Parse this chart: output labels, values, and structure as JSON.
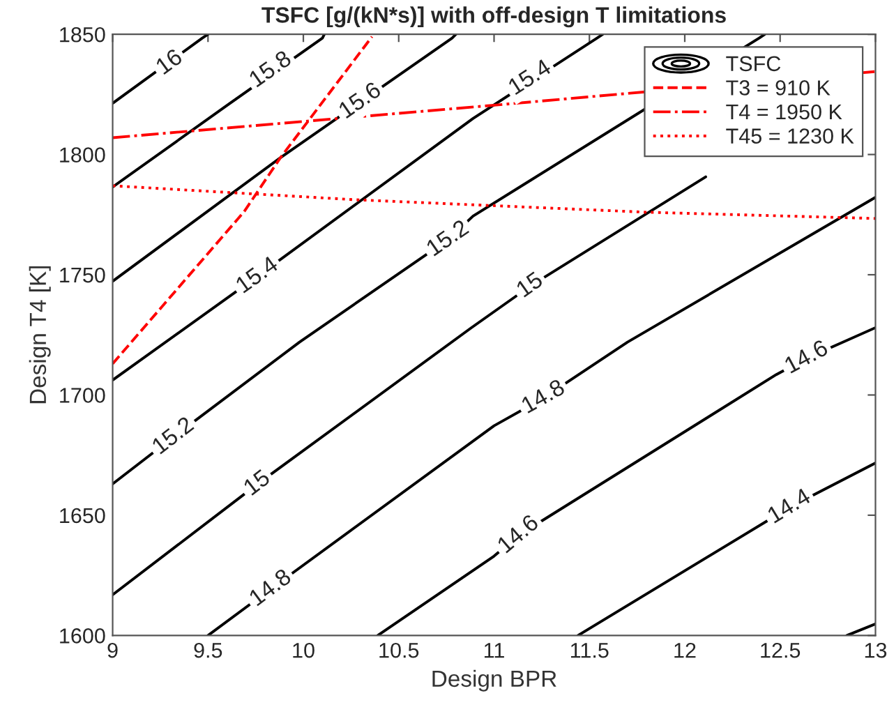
{
  "chart_data": {
    "type": "line",
    "title": "TSFC [g/(kN*s)] with off-design T limitations",
    "xlabel": "Design BPR",
    "ylabel": "Design T4 [K]",
    "xlim": [
      9,
      13
    ],
    "ylim": [
      1600,
      1850
    ],
    "xticks": [
      9,
      9.5,
      10,
      10.5,
      11,
      11.5,
      12,
      12.5,
      13
    ],
    "yticks": [
      1600,
      1650,
      1700,
      1750,
      1800,
      1850
    ],
    "grid": false,
    "legend": "top right",
    "marker": "none",
    "series": [
      {
        "name": "TSFC",
        "color": "#000000",
        "line_style": "solid",
        "x": [
          9,
          9.47,
          9.5
        ],
        "values": [
          1821.3,
          1848.4,
          1850
        ]
      },
      {
        "color": "#000000",
        "line_style": "solid",
        "x": [
          9,
          9.61,
          10.1,
          10.11
        ],
        "values": [
          1786.5,
          1821,
          1848.4,
          1850
        ]
      },
      {
        "color": "#000000",
        "line_style": "solid",
        "x": [
          9,
          9.88,
          10.78,
          10.8
        ],
        "values": [
          1747.3,
          1798.7,
          1848.4,
          1850
        ]
      },
      {
        "color": "#000000",
        "line_style": "solid",
        "x": [
          9,
          9.76,
          10.89,
          11.54,
          11.57
        ],
        "values": [
          1706.2,
          1749.4,
          1815,
          1848.4,
          1850
        ]
      },
      {
        "color": "#000000",
        "line_style": "solid",
        "x": [
          9,
          9.32,
          9.98,
          10.76,
          10.89,
          12.39,
          12.42
        ],
        "values": [
          1663,
          1682.6,
          1722,
          1764.7,
          1774.4,
          1848.4,
          1850
        ]
      },
      {
        "color": "#000000",
        "line_style": "solid",
        "x": [
          9,
          9.76,
          10.88,
          11.19,
          12.11
        ],
        "values": [
          1616.9,
          1663,
          1727.9,
          1745.3,
          1790.7
        ]
      },
      {
        "color": "#000000",
        "line_style": "solid",
        "x": [
          9.5,
          9.83,
          11.0,
          11.26,
          11.7,
          13
        ],
        "values": [
          1600,
          1619.4,
          1687.2,
          1698.8,
          1722,
          1782.2
        ]
      },
      {
        "color": "#000000",
        "line_style": "solid",
        "x": [
          10.39,
          11.0,
          11.13,
          12.48,
          12.64,
          13
        ],
        "values": [
          1600,
          1633,
          1641.7,
          1708.5,
          1715.3,
          1728
        ]
      },
      {
        "color": "#000000",
        "line_style": "solid",
        "x": [
          11.44,
          12.55,
          13
        ],
        "values": [
          1600,
          1653.3,
          1671.7
        ]
      },
      {
        "color": "#000000",
        "line_style": "solid",
        "x": [
          12.85,
          13
        ],
        "values": [
          1600,
          1604.8
        ]
      },
      {
        "name": "T3 = 910 K",
        "color": "#ff0000",
        "line_style": "dashed",
        "x": [
          9,
          9.69,
          9.88,
          10.36
        ],
        "values": [
          1713,
          1776.3,
          1798.7,
          1849
        ]
      },
      {
        "name": "T4 = 1950 K",
        "color": "#ff0000",
        "line_style": "dashdot",
        "x": [
          9,
          11.0,
          13
        ],
        "values": [
          1807,
          1820.5,
          1834.5
        ]
      },
      {
        "name": "T45 = 1230 K",
        "color": "#ff0000",
        "line_style": "dotted",
        "x": [
          9,
          10.27,
          11.8,
          13
        ],
        "values": [
          1787,
          1781.2,
          1776,
          1773.4
        ]
      }
    ],
    "annotations": [
      {
        "text": "16",
        "x": 9.3,
        "y": 1838
      },
      {
        "text": "15.8",
        "x": 9.83,
        "y": 1835
      },
      {
        "text": "15.6",
        "x": 10.3,
        "y": 1822
      },
      {
        "text": "15.4",
        "x": 9.76,
        "y": 1749.4
      },
      {
        "text": "15.4",
        "x": 11.19,
        "y": 1831.6
      },
      {
        "text": "15.2",
        "x": 9.32,
        "y": 1682.6
      },
      {
        "text": "15.2",
        "x": 10.76,
        "y": 1764.7
      },
      {
        "text": "15",
        "x": 9.76,
        "y": 1663
      },
      {
        "text": "15",
        "x": 11.19,
        "y": 1745.3
      },
      {
        "text": "14.8",
        "x": 9.83,
        "y": 1619.4
      },
      {
        "text": "14.8",
        "x": 11.26,
        "y": 1698.8
      },
      {
        "text": "14.6",
        "x": 11.13,
        "y": 1641.7
      },
      {
        "text": "14.6",
        "x": 12.64,
        "y": 1715.3
      },
      {
        "text": "14.4",
        "x": 12.55,
        "y": 1653.3
      }
    ]
  }
}
